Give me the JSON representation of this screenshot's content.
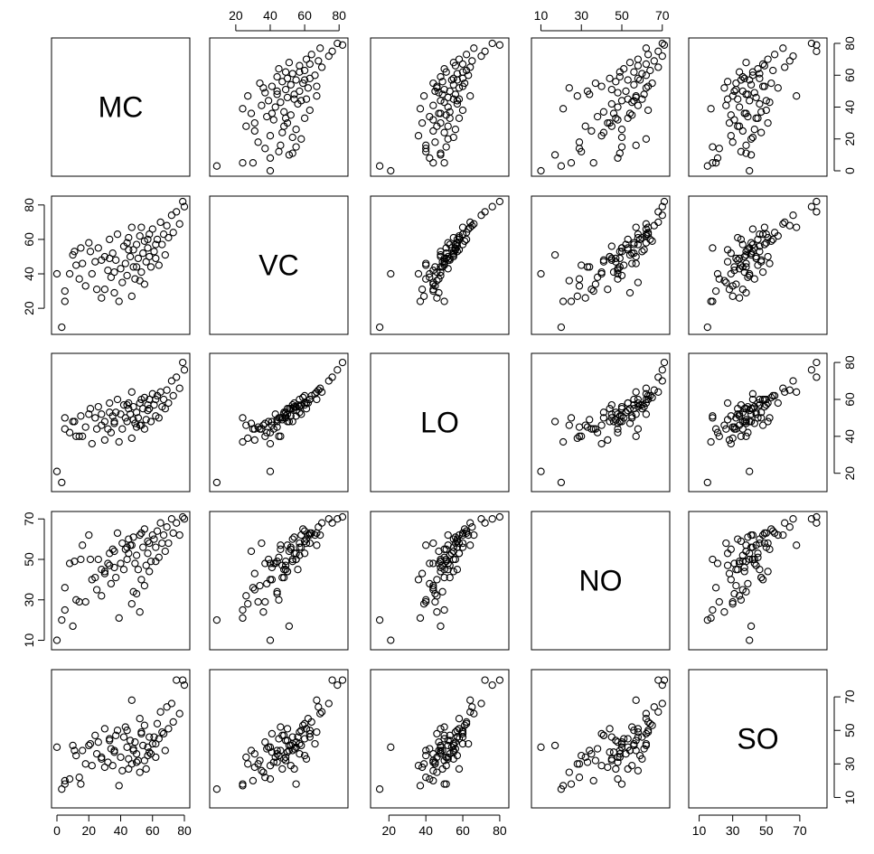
{
  "chart_data": {
    "type": "scatter",
    "variables": [
      "MC",
      "VC",
      "LO",
      "NO",
      "SO"
    ],
    "axis_ranges": {
      "MC": [
        0,
        80
      ],
      "VC": [
        8,
        82
      ],
      "LO": [
        13,
        82
      ],
      "NO": [
        8,
        71
      ],
      "SO": [
        7,
        83
      ]
    },
    "tick_labels": {
      "MC": [
        "0",
        "20",
        "40",
        "60",
        "80"
      ],
      "VC": [
        "20",
        "40",
        "60",
        "80"
      ],
      "LO": [
        "20",
        "40",
        "60",
        "80"
      ],
      "NO": [
        "10",
        "30",
        "50",
        "70"
      ],
      "SO": [
        "10",
        "30",
        "50",
        "70"
      ]
    },
    "axes_layout": {
      "top": [
        "VC",
        "NO"
      ],
      "bottom": [
        "MC",
        "LO",
        "SO"
      ],
      "left": [
        "VC",
        "NO"
      ],
      "right": [
        "MC",
        "LO",
        "SO"
      ]
    },
    "grid": false,
    "observations": [
      [
        0,
        40,
        21,
        10,
        40
      ],
      [
        3,
        9,
        15,
        20,
        15
      ],
      [
        5,
        30,
        44,
        36,
        20
      ],
      [
        5,
        24,
        50,
        25,
        18
      ],
      [
        8,
        40,
        42,
        48,
        21
      ],
      [
        10,
        51,
        48,
        17,
        41
      ],
      [
        12,
        45,
        40,
        30,
        35
      ],
      [
        15,
        55,
        51,
        50,
        18
      ],
      [
        16,
        46,
        40,
        57,
        38
      ],
      [
        18,
        33,
        45,
        29,
        30
      ],
      [
        20,
        58,
        52,
        62,
        41
      ],
      [
        22,
        40,
        36,
        40,
        29
      ],
      [
        25,
        31,
        44,
        35,
        36
      ],
      [
        26,
        55,
        56,
        50,
        43
      ],
      [
        28,
        26,
        46,
        32,
        34
      ],
      [
        30,
        50,
        48,
        44,
        51
      ],
      [
        32,
        42,
        44,
        48,
        31
      ],
      [
        33,
        60,
        58,
        53,
        45
      ],
      [
        34,
        38,
        42,
        38,
        39
      ],
      [
        35,
        52,
        51,
        55,
        29
      ],
      [
        36,
        29,
        47,
        54,
        38
      ],
      [
        37,
        48,
        53,
        41,
        47
      ],
      [
        38,
        63,
        60,
        63,
        50
      ],
      [
        40,
        43,
        52,
        48,
        34
      ],
      [
        41,
        35,
        44,
        58,
        26
      ],
      [
        42,
        56,
        57,
        45,
        46
      ],
      [
        43,
        46,
        50,
        55,
        52
      ],
      [
        44,
        39,
        48,
        50,
        40
      ],
      [
        45,
        61,
        55,
        60,
        33
      ],
      [
        46,
        50,
        52,
        57,
        44
      ],
      [
        47,
        27,
        39,
        28,
        30
      ],
      [
        48,
        54,
        56,
        61,
        39
      ],
      [
        48,
        44,
        49,
        34,
        38
      ],
      [
        49,
        37,
        47,
        48,
        43
      ],
      [
        50,
        57,
        53,
        52,
        36
      ],
      [
        51,
        49,
        50,
        45,
        32
      ],
      [
        52,
        62,
        58,
        62,
        57
      ],
      [
        53,
        41,
        46,
        40,
        48
      ],
      [
        54,
        52,
        55,
        56,
        41
      ],
      [
        55,
        59,
        61,
        65,
        53
      ],
      [
        55,
        34,
        44,
        37,
        32
      ],
      [
        56,
        47,
        49,
        47,
        27
      ],
      [
        57,
        55,
        54,
        53,
        40
      ],
      [
        58,
        63,
        60,
        58,
        46
      ],
      [
        59,
        44,
        48,
        49,
        36
      ],
      [
        60,
        66,
        63,
        62,
        42
      ],
      [
        61,
        53,
        57,
        60,
        46
      ],
      [
        62,
        49,
        51,
        49,
        34
      ],
      [
        63,
        60,
        62,
        64,
        54
      ],
      [
        64,
        45,
        50,
        51,
        45
      ],
      [
        65,
        70,
        64,
        68,
        61
      ],
      [
        66,
        57,
        56,
        58,
        49
      ],
      [
        67,
        63,
        60,
        62,
        48
      ],
      [
        68,
        51,
        55,
        54,
        38
      ],
      [
        69,
        68,
        65,
        66,
        64
      ],
      [
        70,
        61,
        58,
        58,
        51
      ],
      [
        72,
        74,
        70,
        70,
        66
      ],
      [
        73,
        64,
        62,
        63,
        55
      ],
      [
        75,
        76,
        72,
        68,
        80
      ],
      [
        77,
        69,
        66,
        62,
        60
      ],
      [
        79,
        82,
        80,
        71,
        80
      ],
      [
        80,
        79,
        76,
        70,
        77
      ],
      [
        30,
        31,
        38,
        43,
        28
      ],
      [
        14,
        37,
        40,
        29,
        22
      ],
      [
        24,
        47,
        50,
        41,
        47
      ],
      [
        39,
        24,
        37,
        21,
        17
      ],
      [
        47,
        67,
        64,
        57,
        68
      ],
      [
        52,
        36,
        46,
        24,
        25
      ],
      [
        58,
        50,
        55,
        44,
        37
      ],
      [
        62,
        57,
        60,
        56,
        42
      ],
      [
        11,
        53,
        48,
        49,
        38
      ],
      [
        33,
        49,
        53,
        47,
        44
      ],
      [
        45,
        54,
        58,
        53,
        27
      ],
      [
        50,
        44,
        45,
        33,
        31
      ],
      [
        57,
        60,
        57,
        59,
        35
      ],
      [
        44,
        58,
        57,
        56,
        50
      ],
      [
        36,
        41,
        48,
        46,
        37
      ],
      [
        28,
        48,
        52,
        45,
        33
      ],
      [
        21,
        53,
        55,
        50,
        42
      ],
      [
        53,
        67,
        60,
        63,
        49
      ]
    ]
  }
}
